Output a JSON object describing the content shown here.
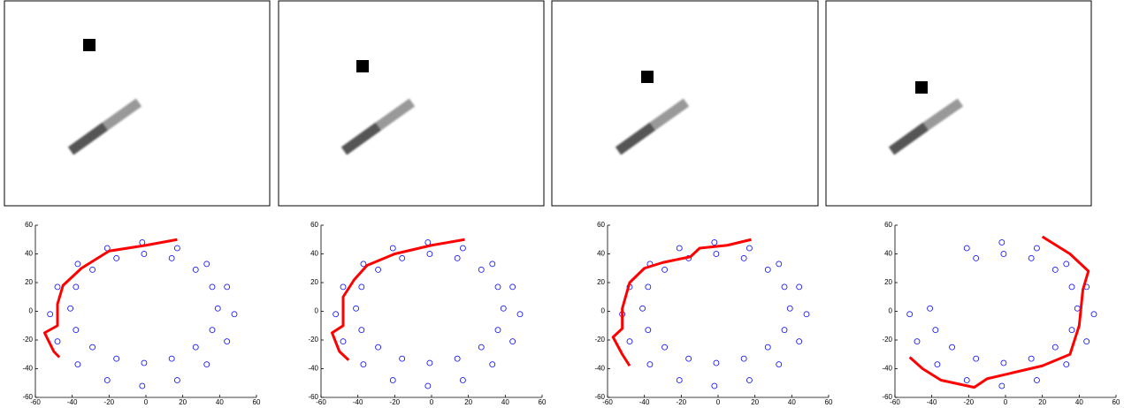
{
  "chart_data": [
    {
      "type": "scatter",
      "xlim": [
        -60,
        60
      ],
      "ylim": [
        -60,
        60
      ],
      "xticks": [
        -60,
        -40,
        -20,
        0,
        20,
        40,
        60
      ],
      "yticks": [
        -60,
        -40,
        -20,
        0,
        20,
        40,
        60
      ],
      "series": [
        {
          "color": "#0000ff",
          "mode": "markers",
          "x": [
            48,
            44,
            33,
            17,
            -2,
            -21,
            -37,
            -48,
            -52,
            -48,
            -37,
            -21,
            -2,
            17,
            33,
            44,
            39,
            36,
            27,
            14,
            -1,
            -16,
            -29,
            -38,
            -41,
            -38,
            -29,
            -16,
            -1,
            14,
            27,
            36
          ],
          "values": [
            -2,
            17,
            33,
            44,
            48,
            44,
            33,
            17,
            -2,
            -21,
            -37,
            -48,
            -52,
            -48,
            -37,
            -21,
            2,
            17,
            29,
            37,
            40,
            37,
            29,
            17,
            2,
            -13,
            -25,
            -33,
            -36,
            -33,
            -25,
            -13
          ]
        },
        {
          "color": "#ff0000",
          "mode": "line",
          "x": [
            17,
            0,
            -20,
            -35,
            -45,
            -48,
            -48,
            -55,
            -50,
            -47
          ],
          "values": [
            50,
            46,
            42,
            30,
            18,
            5,
            -10,
            -15,
            -28,
            -32
          ]
        }
      ]
    },
    {
      "type": "scatter",
      "xlim": [
        -60,
        60
      ],
      "ylim": [
        -60,
        60
      ],
      "xticks": [
        -60,
        -40,
        -20,
        0,
        20,
        40,
        60
      ],
      "yticks": [
        -60,
        -40,
        -20,
        0,
        20,
        40,
        60
      ],
      "series": [
        {
          "color": "#0000ff",
          "mode": "markers",
          "x": [
            48,
            44,
            33,
            17,
            -2,
            -21,
            -37,
            -48,
            -52,
            -48,
            -37,
            -21,
            -2,
            17,
            33,
            44,
            39,
            36,
            27,
            14,
            -1,
            -16,
            -29,
            -38,
            -41,
            -38,
            -29,
            -16,
            -1,
            14,
            27,
            36
          ],
          "values": [
            -2,
            17,
            33,
            44,
            48,
            44,
            33,
            17,
            -2,
            -21,
            -37,
            -48,
            -52,
            -48,
            -37,
            -21,
            2,
            17,
            29,
            37,
            40,
            37,
            29,
            17,
            2,
            -13,
            -25,
            -33,
            -36,
            -33,
            -25,
            -13
          ]
        },
        {
          "color": "#ff0000",
          "mode": "line",
          "x": [
            18,
            0,
            -20,
            -35,
            -42,
            -48,
            -48,
            -54,
            -50,
            -45
          ],
          "values": [
            50,
            46,
            40,
            32,
            22,
            10,
            -10,
            -15,
            -28,
            -34
          ]
        }
      ]
    },
    {
      "type": "scatter",
      "xlim": [
        -60,
        60
      ],
      "ylim": [
        -60,
        60
      ],
      "xticks": [
        -60,
        -40,
        -20,
        0,
        20,
        40,
        60
      ],
      "yticks": [
        -60,
        -40,
        -20,
        0,
        20,
        40,
        60
      ],
      "series": [
        {
          "color": "#0000ff",
          "mode": "markers",
          "x": [
            48,
            44,
            33,
            17,
            -2,
            -21,
            -37,
            -48,
            -52,
            -48,
            -37,
            -21,
            -2,
            17,
            33,
            44,
            39,
            36,
            27,
            14,
            -1,
            -16,
            -29,
            -38,
            -41,
            -38,
            -29,
            -16,
            -1,
            14,
            27,
            36
          ],
          "values": [
            -2,
            17,
            33,
            44,
            48,
            44,
            33,
            17,
            -2,
            -21,
            -37,
            -48,
            -52,
            -48,
            -37,
            -21,
            2,
            17,
            29,
            37,
            40,
            37,
            29,
            17,
            2,
            -13,
            -25,
            -33,
            -36,
            -33,
            -25,
            -13
          ]
        },
        {
          "color": "#ff0000",
          "mode": "line",
          "x": [
            18,
            5,
            -10,
            -15,
            -30,
            -40,
            -48,
            -52,
            -52,
            -57,
            -52,
            -48
          ],
          "values": [
            50,
            46,
            44,
            38,
            34,
            30,
            20,
            2,
            -12,
            -18,
            -30,
            -38
          ]
        }
      ]
    },
    {
      "type": "scatter",
      "xlim": [
        -60,
        60
      ],
      "ylim": [
        -60,
        60
      ],
      "xticks": [
        -60,
        -40,
        -20,
        0,
        20,
        40,
        60
      ],
      "yticks": [
        -60,
        -40,
        -20,
        0,
        20,
        40,
        60
      ],
      "series": [
        {
          "color": "#0000ff",
          "mode": "markers",
          "x": [
            48,
            44,
            33,
            17,
            -2,
            -21,
            -52,
            -48,
            -37,
            -21,
            -2,
            17,
            33,
            44,
            39,
            36,
            27,
            14,
            -1,
            -16,
            -41,
            -38,
            -29,
            -16,
            -1,
            14,
            27,
            36
          ],
          "values": [
            -2,
            17,
            33,
            44,
            48,
            44,
            -2,
            -21,
            -37,
            -48,
            -52,
            -48,
            -37,
            -21,
            2,
            17,
            29,
            37,
            40,
            37,
            2,
            -13,
            -25,
            -33,
            -36,
            -33,
            -25,
            -13
          ]
        },
        {
          "color": "#ff0000",
          "mode": "line",
          "x": [
            20,
            35,
            45,
            42,
            40,
            35,
            20,
            -10,
            -17,
            -35,
            -45,
            -52
          ],
          "values": [
            52,
            40,
            28,
            15,
            -10,
            -30,
            -38,
            -47,
            -53,
            -48,
            -40,
            -32
          ]
        }
      ]
    }
  ]
}
